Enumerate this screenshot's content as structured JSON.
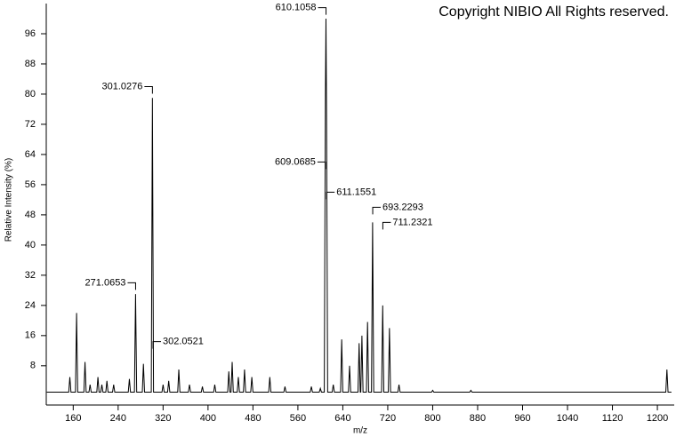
{
  "chart_data": {
    "type": "line",
    "title": "Copyright NIBIO All Rights reserved.",
    "xlabel": "m/z",
    "ylabel": "Relative Intensity (%)",
    "color": "#000000",
    "xlim": [
      112,
      1230
    ],
    "ylim": [
      -2.4,
      104
    ],
    "xticks": [
      160,
      240,
      320,
      400,
      480,
      560,
      640,
      720,
      800,
      880,
      960,
      1040,
      1120,
      1200
    ],
    "yticks": [
      8,
      16,
      24,
      32,
      40,
      48,
      56,
      64,
      72,
      80,
      88,
      96
    ],
    "grid": false,
    "x": [
      113,
      152,
      154,
      156,
      164,
      166,
      168,
      179,
      181,
      183,
      188,
      190,
      192,
      202,
      204,
      206,
      209,
      211,
      213,
      218,
      220,
      222,
      230,
      232,
      234,
      258,
      260,
      262,
      269,
      271,
      273,
      283,
      285,
      287,
      299,
      301,
      303,
      318,
      320,
      322,
      328,
      330,
      332,
      346,
      348,
      350,
      365,
      367,
      369,
      388,
      390,
      392,
      410,
      412,
      414,
      435,
      437,
      439,
      441,
      443,
      445,
      452,
      454,
      456,
      463,
      465,
      467,
      476,
      478,
      480,
      508,
      510,
      512,
      535,
      537,
      539,
      582,
      584,
      586,
      598,
      600,
      602,
      607,
      609,
      610,
      611,
      613,
      621,
      623,
      625,
      636,
      638,
      640,
      650,
      652,
      654,
      667,
      669,
      671,
      672,
      674,
      676,
      682,
      684,
      686,
      691,
      693,
      695,
      709,
      711,
      713,
      721,
      723,
      725,
      738,
      740,
      742,
      798,
      800,
      802,
      866,
      868,
      870,
      1215,
      1217,
      1219,
      1225
    ],
    "values": [
      1,
      1,
      5,
      1,
      1,
      22,
      1,
      1,
      9,
      1,
      1,
      3,
      1,
      1,
      5,
      1,
      1,
      3,
      1,
      1,
      4,
      1,
      1,
      3,
      1,
      1,
      4.5,
      1,
      1,
      27,
      1,
      1,
      8.5,
      1,
      1,
      79,
      1,
      1,
      3,
      1,
      1,
      4,
      1,
      1,
      7,
      1,
      1,
      3,
      1,
      1,
      2.5,
      1,
      1,
      3,
      1,
      1,
      6.5,
      1,
      1,
      9,
      1,
      1,
      5,
      1,
      1,
      7,
      1,
      1,
      5,
      1,
      1,
      5,
      1,
      1,
      2.5,
      1,
      1,
      2.5,
      1,
      1,
      2,
      1,
      1,
      80,
      100,
      76,
      1,
      1,
      3,
      1,
      1,
      15,
      1,
      1,
      8,
      1,
      1,
      14,
      1,
      1,
      16,
      1,
      1,
      19.6,
      1,
      1,
      46,
      1,
      1,
      24,
      1,
      1,
      18,
      1,
      1,
      3,
      1,
      1,
      1.5,
      1,
      1,
      1.5,
      1,
      1,
      7,
      1,
      1
    ],
    "annotations": [
      {
        "x": 610.1058,
        "y": 102.9,
        "side": "left"
      },
      {
        "x": 301.0276,
        "y": 82,
        "side": "left"
      },
      {
        "x": 609.0685,
        "y": 62,
        "side": "left"
      },
      {
        "x": 611.1551,
        "y": 54,
        "side": "right"
      },
      {
        "x": 693.2293,
        "y": 50,
        "side": "right"
      },
      {
        "x": 711.2321,
        "y": 46,
        "side": "right"
      },
      {
        "x": 271.0653,
        "y": 30,
        "side": "left"
      },
      {
        "x": 302.0521,
        "y": 14.4,
        "side": "right"
      }
    ]
  }
}
